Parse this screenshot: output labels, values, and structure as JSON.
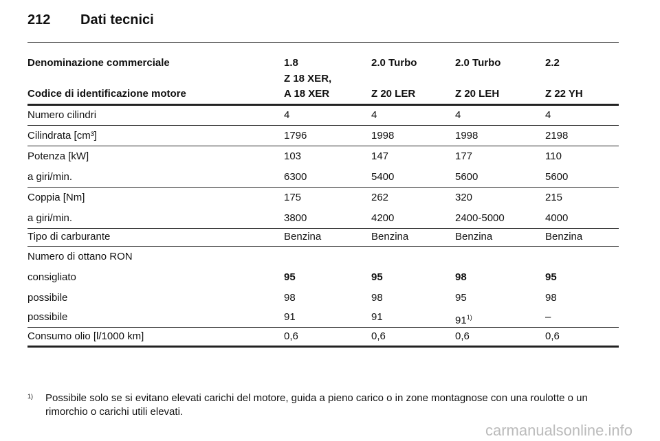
{
  "header": {
    "page_number": "212",
    "title": "Dati tecnici"
  },
  "table": {
    "head": [
      {
        "label": "Denominazione commerciale",
        "values": [
          "1.8",
          "2.0 Turbo",
          "2.0 Turbo",
          "2.2"
        ]
      },
      {
        "label": "Codice di identificazione motore",
        "values": [
          "Z 18 XER,\nA 18 XER",
          "Z 20 LER",
          "Z 20 LEH",
          "Z 22 YH"
        ]
      }
    ],
    "rows": [
      {
        "label": "Numero cilindri",
        "values": [
          "4",
          "4",
          "4",
          "4"
        ]
      },
      {
        "label": "Cilindrata [cm³]",
        "values": [
          "1796",
          "1998",
          "1998",
          "2198"
        ]
      },
      {
        "label": "Potenza [kW]",
        "values": [
          "103",
          "147",
          "177",
          "110"
        ]
      },
      {
        "label": "a giri/min.",
        "values": [
          "6300",
          "5400",
          "5600",
          "5600"
        ]
      },
      {
        "label": "Coppia [Nm]",
        "values": [
          "175",
          "262",
          "320",
          "215"
        ]
      },
      {
        "label": "a giri/min.",
        "values": [
          "3800",
          "4200",
          "2400-5000",
          "4000"
        ]
      },
      {
        "label": "Tipo di carburante",
        "values": [
          "Benzina",
          "Benzina",
          "Benzina",
          "Benzina"
        ]
      },
      {
        "label": "Numero di ottano RON",
        "values": []
      },
      {
        "label": "consigliato",
        "values": [
          "95",
          "95",
          "98",
          "95"
        ],
        "bold": true
      },
      {
        "label": "possibile",
        "values": [
          "98",
          "98",
          "95",
          "98"
        ]
      },
      {
        "label": "possibile",
        "values": [
          "91",
          "91",
          {
            "text": "91",
            "sup": "1)"
          },
          "–"
        ]
      },
      {
        "label": "Consumo olio [l/1000 km]",
        "values": [
          "0,6",
          "0,6",
          "0,6",
          "0,6"
        ]
      }
    ]
  },
  "footnote": {
    "mark": "1)",
    "text": "Possibile solo se si evitano elevati carichi del motore, guida a pieno carico o in zone montagnose con una roulotte o un rimorchio o carichi utili elevati."
  },
  "watermark": "carmanualsonline.info"
}
